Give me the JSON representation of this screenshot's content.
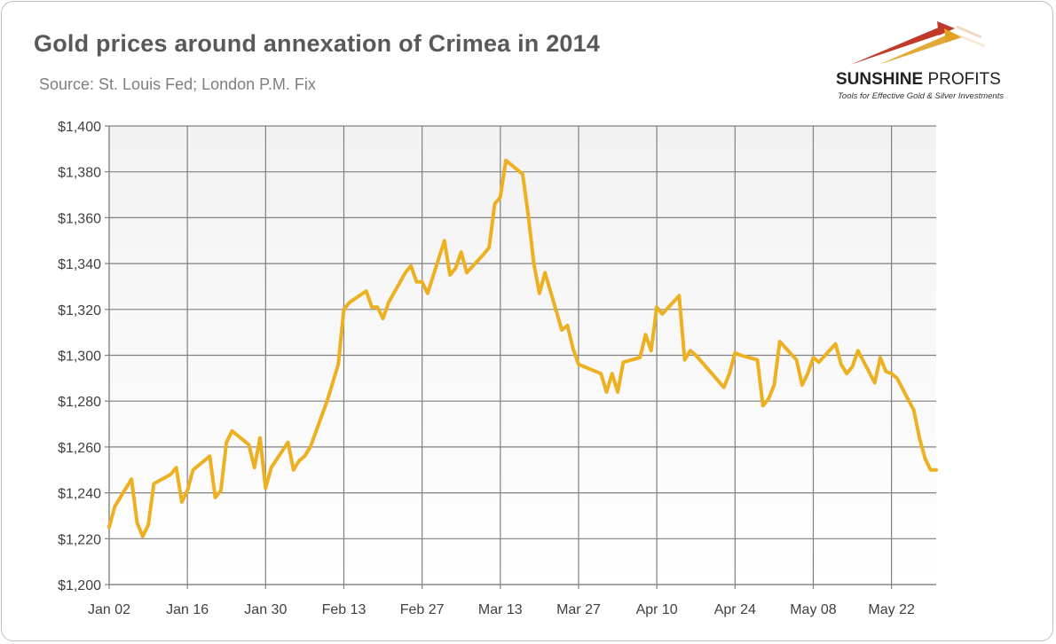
{
  "title": "Gold prices around annexation of Crimea in 2014",
  "subtitle": "Source: St. Louis Fed; London P.M. Fix",
  "logo": {
    "name_bold": "SUNSHINE",
    "name_rest": " PROFITS",
    "tagline": "Tools for Effective Gold & Silver Investments"
  },
  "colors": {
    "line": "#EDB021",
    "plot_bg_top": "#f2f2f2",
    "plot_bg_bottom": "#ffffff",
    "grid": "#808080",
    "text": "#404040",
    "logo_red": "#c0392b",
    "logo_gold": "#e0a020"
  },
  "chart_data": {
    "type": "line",
    "title": "Gold prices around annexation of Crimea in 2014",
    "xlabel": "",
    "ylabel": "",
    "ylim": [
      1200,
      1400
    ],
    "ytick_values": [
      1200,
      1220,
      1240,
      1260,
      1280,
      1300,
      1320,
      1340,
      1360,
      1380,
      1400
    ],
    "ytick_labels": [
      "$1,200",
      "$1,220",
      "$1,240",
      "$1,260",
      "$1,280",
      "$1,300",
      "$1,320",
      "$1,340",
      "$1,360",
      "$1,380",
      "$1,400"
    ],
    "xlim": [
      "2014-01-02",
      "2014-05-30"
    ],
    "xtick_values": [
      "2014-01-02",
      "2014-01-16",
      "2014-01-30",
      "2014-02-13",
      "2014-02-27",
      "2014-03-13",
      "2014-03-27",
      "2014-04-10",
      "2014-04-24",
      "2014-05-08",
      "2014-05-22"
    ],
    "xtick_labels": [
      "Jan 02",
      "Jan 16",
      "Jan 30",
      "Feb 13",
      "Feb 27",
      "Mar 13",
      "Mar 27",
      "Apr 10",
      "Apr 24",
      "May 08",
      "May 22"
    ],
    "grid": true,
    "legend": "none",
    "series": [
      {
        "x": [
          "2014-01-02",
          "2014-01-03",
          "2014-01-06",
          "2014-01-07",
          "2014-01-08",
          "2014-01-09",
          "2014-01-10",
          "2014-01-13",
          "2014-01-14",
          "2014-01-15",
          "2014-01-16",
          "2014-01-17",
          "2014-01-20",
          "2014-01-21",
          "2014-01-22",
          "2014-01-23",
          "2014-01-24",
          "2014-01-27",
          "2014-01-28",
          "2014-01-29",
          "2014-01-30",
          "2014-01-31",
          "2014-02-03",
          "2014-02-04",
          "2014-02-05",
          "2014-02-06",
          "2014-02-07",
          "2014-02-10",
          "2014-02-11",
          "2014-02-12",
          "2014-02-13",
          "2014-02-14",
          "2014-02-17",
          "2014-02-18",
          "2014-02-19",
          "2014-02-20",
          "2014-02-21",
          "2014-02-24",
          "2014-02-25",
          "2014-02-26",
          "2014-02-27",
          "2014-02-28",
          "2014-03-03",
          "2014-03-04",
          "2014-03-05",
          "2014-03-06",
          "2014-03-07",
          "2014-03-10",
          "2014-03-11",
          "2014-03-12",
          "2014-03-13",
          "2014-03-14",
          "2014-03-17",
          "2014-03-18",
          "2014-03-19",
          "2014-03-20",
          "2014-03-21",
          "2014-03-24",
          "2014-03-25",
          "2014-03-26",
          "2014-03-27",
          "2014-03-28",
          "2014-03-31",
          "2014-04-01",
          "2014-04-02",
          "2014-04-03",
          "2014-04-04",
          "2014-04-07",
          "2014-04-08",
          "2014-04-09",
          "2014-04-10",
          "2014-04-11",
          "2014-04-14",
          "2014-04-15",
          "2014-04-16",
          "2014-04-17",
          "2014-04-22",
          "2014-04-23",
          "2014-04-24",
          "2014-04-25",
          "2014-04-28",
          "2014-04-29",
          "2014-04-30",
          "2014-05-01",
          "2014-05-02",
          "2014-05-05",
          "2014-05-06",
          "2014-05-07",
          "2014-05-08",
          "2014-05-09",
          "2014-05-12",
          "2014-05-13",
          "2014-05-14",
          "2014-05-15",
          "2014-05-16",
          "2014-05-19",
          "2014-05-20",
          "2014-05-21",
          "2014-05-22",
          "2014-05-23",
          "2014-05-26",
          "2014-05-27",
          "2014-05-28",
          "2014-05-29",
          "2014-05-30"
        ],
        "y": [
          1225,
          1234,
          1246,
          1227,
          1221,
          1226,
          1244,
          1248,
          1251,
          1236,
          1241,
          1250,
          1256,
          1238,
          1241,
          1262,
          1267,
          1261,
          1251,
          1264,
          1242,
          1251,
          1262,
          1250,
          1254,
          1256,
          1260,
          1280,
          1288,
          1296,
          1320,
          1323,
          1328,
          1321,
          1321,
          1316,
          1323,
          1336,
          1339,
          1332,
          1332,
          1327,
          1350,
          1335,
          1338,
          1345,
          1336,
          1344,
          1347,
          1366,
          1369,
          1385,
          1379,
          1361,
          1340,
          1327,
          1336,
          1311,
          1313,
          1303,
          1296,
          1295,
          1292,
          1284,
          1292,
          1284,
          1297,
          1299,
          1309,
          1302,
          1321,
          1318,
          1326,
          1298,
          1302,
          1300,
          1286,
          1292,
          1301,
          1300,
          1298,
          1278,
          1281,
          1287,
          1306,
          1298,
          1287,
          1292,
          1299,
          1297,
          1305,
          1296,
          1292,
          1295,
          1302,
          1288,
          1299,
          1293,
          1292,
          1290,
          1276,
          1264,
          1255,
          1250,
          1250
        ]
      }
    ]
  }
}
